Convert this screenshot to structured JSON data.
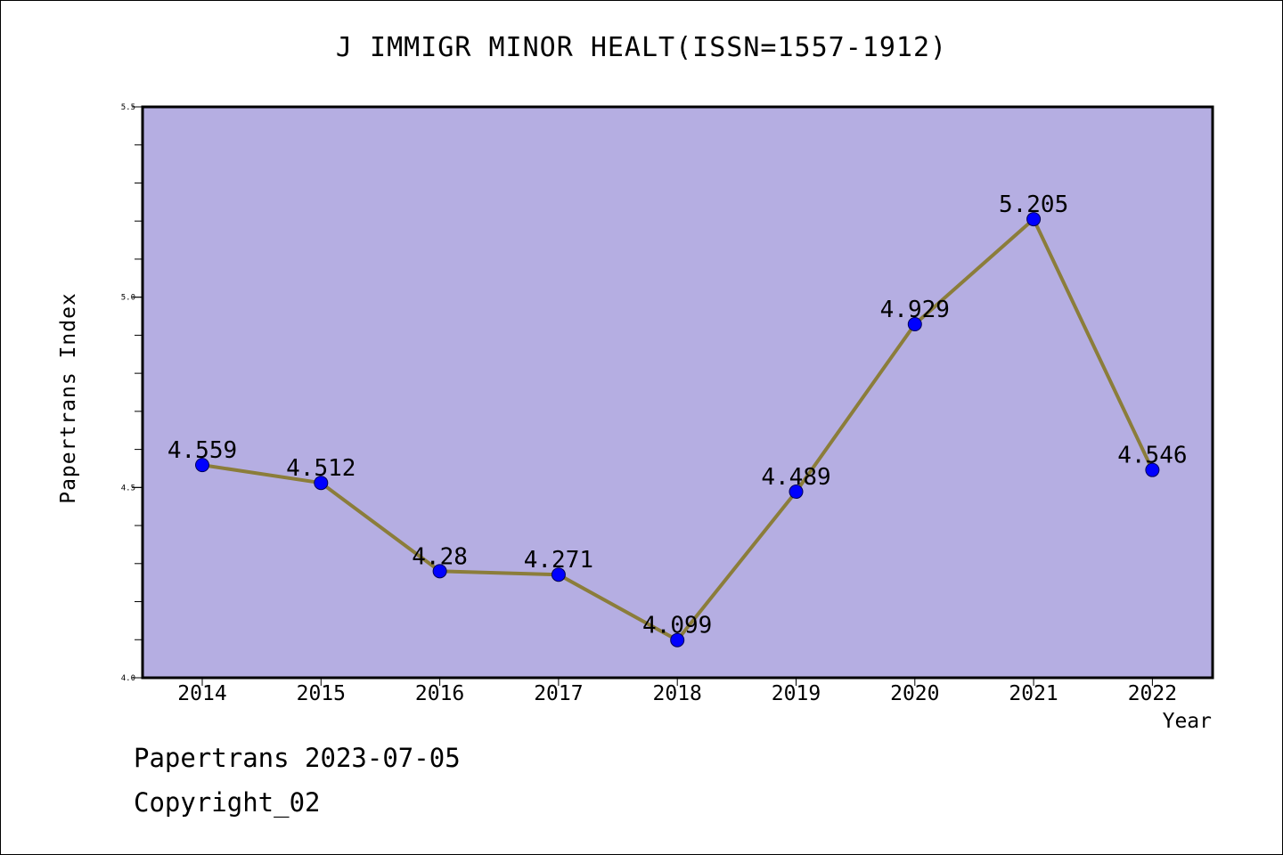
{
  "page": {
    "footer_date": "Papertrans 2023-07-05",
    "footer_copyright": "Copyright_02"
  },
  "chart_data": {
    "type": "line",
    "title": "J IMMIGR MINOR HEALT(ISSN=1557-1912)",
    "xlabel": "Year",
    "ylabel": "Papertrans Index",
    "categories": [
      "2014",
      "2015",
      "2016",
      "2017",
      "2018",
      "2019",
      "2020",
      "2021",
      "2022"
    ],
    "series": [
      {
        "values": [
          4.559,
          4.512,
          4.28,
          4.271,
          4.099,
          4.489,
          4.929,
          5.205,
          4.546
        ],
        "labels": [
          "4.559",
          "4.512",
          "4.28",
          "4.271",
          "4.099",
          "4.489",
          "4.929",
          "5.205",
          "4.546"
        ]
      }
    ],
    "ylim": [
      4.0,
      5.5
    ],
    "yticks": [
      "4.0",
      "4.5",
      "5.0",
      "5.5"
    ],
    "grid": false,
    "legend": "none",
    "colors": {
      "plot_background": "#b5aee2",
      "line": "#8b7d3a",
      "marker": "#0000ff",
      "axes": "#000000"
    }
  }
}
